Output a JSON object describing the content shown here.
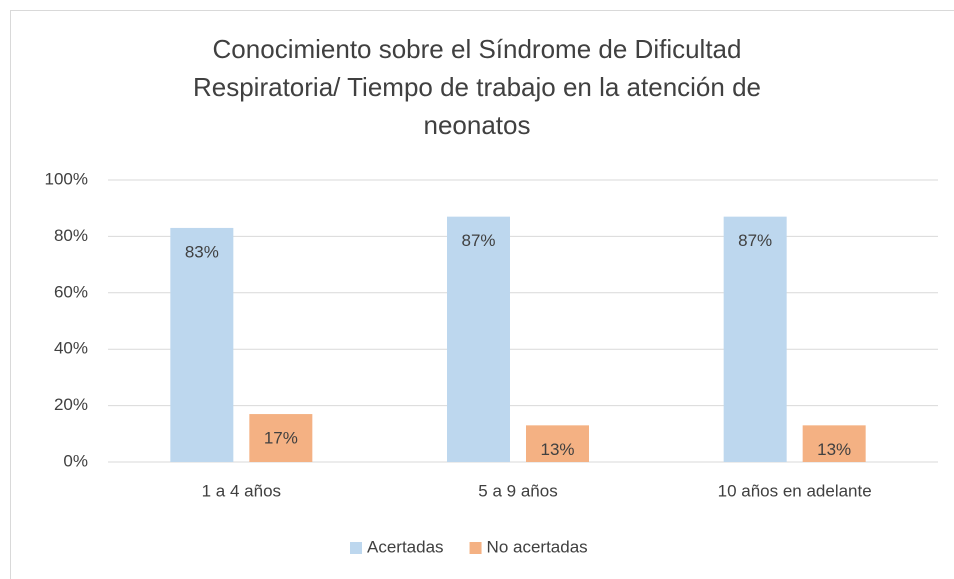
{
  "chart_data": {
    "type": "bar",
    "title": "Conocimiento sobre el Síndrome de Dificultad Respiratoria/ Tiempo de trabajo en la atención de neonatos",
    "categories": [
      "1 a 4 años",
      "5 a 9 años",
      "10 años en adelante"
    ],
    "series": [
      {
        "name": "Acertadas",
        "color": "#bdd7ee",
        "values": [
          83,
          87,
          87
        ],
        "value_labels": [
          "83%",
          "87%",
          "87%"
        ]
      },
      {
        "name": "No acertadas",
        "color": "#f4b183",
        "values": [
          17,
          13,
          13
        ],
        "value_labels": [
          "17%",
          "13%",
          "13%"
        ]
      }
    ],
    "ylim": [
      0,
      100
    ],
    "yticks": [
      {
        "value": 0,
        "label": "0%"
      },
      {
        "value": 20,
        "label": "20%"
      },
      {
        "value": 40,
        "label": "40%"
      },
      {
        "value": 60,
        "label": "60%"
      },
      {
        "value": 80,
        "label": "80%"
      },
      {
        "value": 100,
        "label": "100%"
      }
    ],
    "grid": true,
    "legend": "bottom"
  }
}
